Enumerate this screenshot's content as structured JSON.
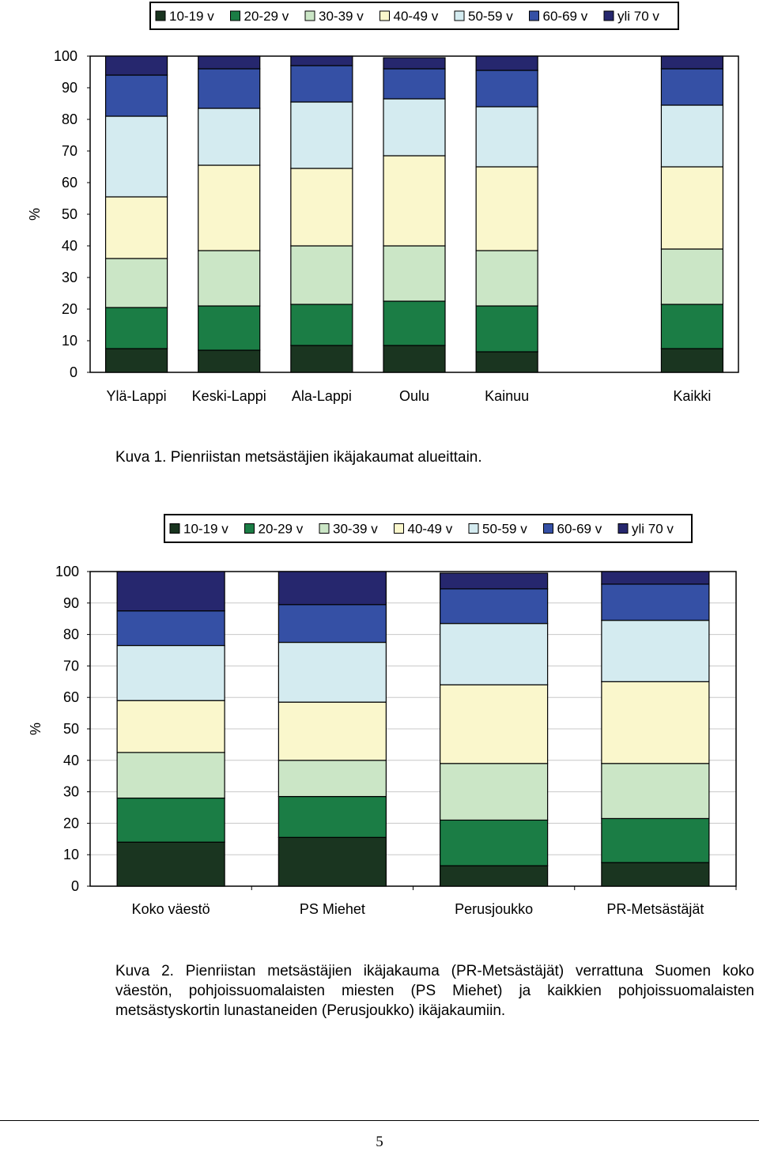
{
  "colors": {
    "10-19 v": "#1a3520",
    "20-29 v": "#1b7d45",
    "30-39 v": "#cbe6c6",
    "40-49 v": "#faf7cc",
    "50-59 v": "#d4ebf0",
    "60-69 v": "#3550a5",
    "yli 70 v": "#26276e"
  },
  "chart_data": [
    {
      "type": "bar",
      "stacked": true,
      "title": "",
      "xlabel": "",
      "ylabel": "%",
      "ylim": [
        0,
        100
      ],
      "yticks": [
        0,
        10,
        20,
        30,
        40,
        50,
        60,
        70,
        80,
        90,
        100
      ],
      "grid": false,
      "legend_position": "top",
      "categories": [
        "Ylä-Lappi",
        "Keski-Lappi",
        "Ala-Lappi",
        "Oulu",
        "Kainuu",
        "",
        "Kaikki"
      ],
      "series": [
        {
          "name": "10-19 v",
          "values": [
            7.5,
            7,
            8.5,
            8.5,
            6.5,
            null,
            7.5
          ]
        },
        {
          "name": "20-29 v",
          "values": [
            13,
            14,
            13,
            14,
            14.5,
            null,
            14
          ]
        },
        {
          "name": "30-39 v",
          "values": [
            15.5,
            17.5,
            18.5,
            17.5,
            17.5,
            null,
            17.5
          ]
        },
        {
          "name": "40-49 v",
          "values": [
            19.5,
            27,
            24.5,
            28.5,
            26.5,
            null,
            26
          ]
        },
        {
          "name": "50-59 v",
          "values": [
            25.5,
            18,
            21,
            18,
            19,
            null,
            19.5
          ]
        },
        {
          "name": "60-69 v",
          "values": [
            13,
            12.5,
            11.5,
            9.5,
            11.5,
            null,
            11.5
          ]
        },
        {
          "name": "yli 70 v",
          "values": [
            6,
            4,
            3,
            3.5,
            4.5,
            null,
            4
          ]
        }
      ]
    },
    {
      "type": "bar",
      "stacked": true,
      "title": "",
      "xlabel": "",
      "ylabel": "%",
      "ylim": [
        0,
        100
      ],
      "yticks": [
        0,
        10,
        20,
        30,
        40,
        50,
        60,
        70,
        80,
        90,
        100
      ],
      "grid": true,
      "legend_position": "top",
      "categories": [
        "Koko väestö",
        "PS Miehet",
        "Perusjoukko",
        "PR-Metsästäjät"
      ],
      "series": [
        {
          "name": "10-19 v",
          "values": [
            14,
            15.5,
            6.5,
            7.5
          ]
        },
        {
          "name": "20-29 v",
          "values": [
            14,
            13,
            14.5,
            14
          ]
        },
        {
          "name": "30-39 v",
          "values": [
            14.5,
            11.5,
            18,
            17.5
          ]
        },
        {
          "name": "40-49 v",
          "values": [
            16.5,
            18.5,
            25,
            26
          ]
        },
        {
          "name": "50-59 v",
          "values": [
            17.5,
            19,
            19.5,
            19.5
          ]
        },
        {
          "name": "60-69 v",
          "values": [
            11,
            12,
            11,
            11.5
          ]
        },
        {
          "name": "yli 70 v",
          "values": [
            12.5,
            10.5,
            5,
            4
          ]
        }
      ]
    }
  ],
  "captions": {
    "figure1": "Kuva 1. Pienriistan metsästäjien ikäjakaumat alueittain.",
    "figure2": "Kuva 2. Pienriistan metsästäjien ikäjakauma (PR-Metsästäjät) verrattuna Suomen koko väestön, pohjoissuomalaisten miesten (PS Miehet) ja kaikkien pohjoissuomalaisten metsästyskortin lunastaneiden (Perusjoukko) ikäjakaumiin."
  },
  "page_number": "5"
}
